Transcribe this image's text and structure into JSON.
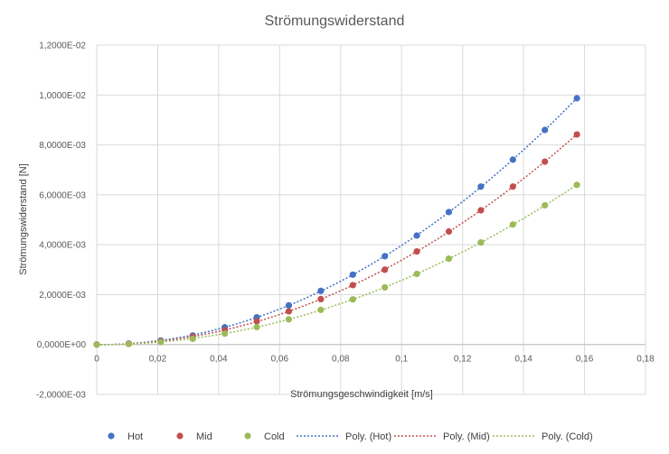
{
  "chart_data": {
    "type": "scatter",
    "title": "Strömungswiderstand",
    "xlabel": "Strömungsgeschwindigkeit [m/s]",
    "ylabel": "Strömungswiderstand [N]",
    "xlim": [
      0,
      0.18
    ],
    "ylim": [
      -0.002,
      0.012
    ],
    "x_ticks": [
      "0",
      "0,02",
      "0,04",
      "0,06",
      "0,08",
      "0,1",
      "0,12",
      "0,14",
      "0,16",
      "0,18"
    ],
    "y_ticks": [
      "-2,0000E-03",
      "0,0000E+00",
      "2,0000E-03",
      "4,0000E-03",
      "6,0000E-03",
      "8,0000E-03",
      "1,0000E-02",
      "1,2000E-02"
    ],
    "grid": true,
    "legend_position": "bottom",
    "x": [
      0,
      0.0105,
      0.021,
      0.0315,
      0.042,
      0.0525,
      0.063,
      0.0735,
      0.084,
      0.0945,
      0.105,
      0.1155,
      0.126,
      0.1365,
      0.147,
      0.1575
    ],
    "series": [
      {
        "name": "Hot",
        "color": "#4472c4",
        "values": [
          0,
          4e-05,
          0.00016,
          0.00036,
          0.00069,
          0.00109,
          0.00157,
          0.00215,
          0.0028,
          0.00354,
          0.00437,
          0.00531,
          0.00633,
          0.00741,
          0.0086,
          0.00987
        ]
      },
      {
        "name": "Mid",
        "color": "#c0504d",
        "values": [
          0,
          3e-05,
          0.00013,
          0.00031,
          0.00058,
          0.00093,
          0.00133,
          0.00182,
          0.00238,
          0.003,
          0.00373,
          0.00453,
          0.00538,
          0.00633,
          0.00733,
          0.00842
        ]
      },
      {
        "name": "Cold",
        "color": "#9bbb59",
        "values": [
          0,
          2e-05,
          0.0001,
          0.00023,
          0.00044,
          0.0007,
          0.00101,
          0.00139,
          0.00181,
          0.00229,
          0.00283,
          0.00344,
          0.00409,
          0.00481,
          0.00558,
          0.0064
        ]
      }
    ],
    "trendlines": [
      {
        "name": "Poly. (Hot)",
        "color": "#4472c4",
        "of": "Hot"
      },
      {
        "name": "Poly. (Mid)",
        "color": "#c0504d",
        "of": "Mid"
      },
      {
        "name": "Poly. (Cold)",
        "color": "#9bbb59",
        "of": "Cold"
      }
    ]
  }
}
